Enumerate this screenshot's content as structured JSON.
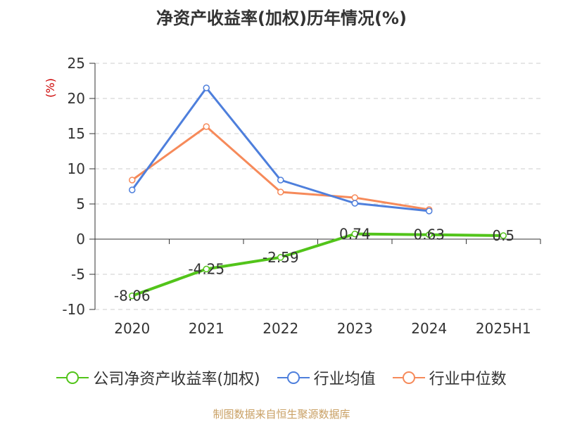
{
  "title": "净资产收益率(加权)历年情况(%)",
  "source": "制图数据来自恒生聚源数据库",
  "colors": {
    "company": "#52c41a",
    "avg": "#4e7fdc",
    "median": "#f68a5a",
    "ylabel": "#cc0000",
    "grid": "#cccccc",
    "axis": "#333333"
  },
  "chart_data": {
    "type": "line",
    "title": "净资产收益率(加权)历年情况(%)",
    "ylabel": "(%)",
    "categories": [
      "2020",
      "2021",
      "2022",
      "2023",
      "2024",
      "2025H1"
    ],
    "ylim": [
      -10,
      25
    ],
    "yticks": [
      25,
      20,
      15,
      10,
      5,
      0,
      -5,
      -10
    ],
    "grid": true,
    "legend_position": "bottom",
    "series": [
      {
        "name": "公司净资产收益率(加权)",
        "values": [
          -8.06,
          -4.25,
          -2.59,
          0.74,
          0.63,
          0.5
        ],
        "labels": [
          "-8.06",
          "-4.25",
          "-2.59",
          "0.74",
          "0.63",
          "0.5"
        ],
        "color": "#52c41a"
      },
      {
        "name": "行业均值",
        "values": [
          7.0,
          21.5,
          8.4,
          5.1,
          4.0,
          null
        ],
        "color": "#4e7fdc"
      },
      {
        "name": "行业中位数",
        "values": [
          8.4,
          16.0,
          6.7,
          5.9,
          4.2,
          null
        ],
        "color": "#f68a5a"
      }
    ]
  }
}
